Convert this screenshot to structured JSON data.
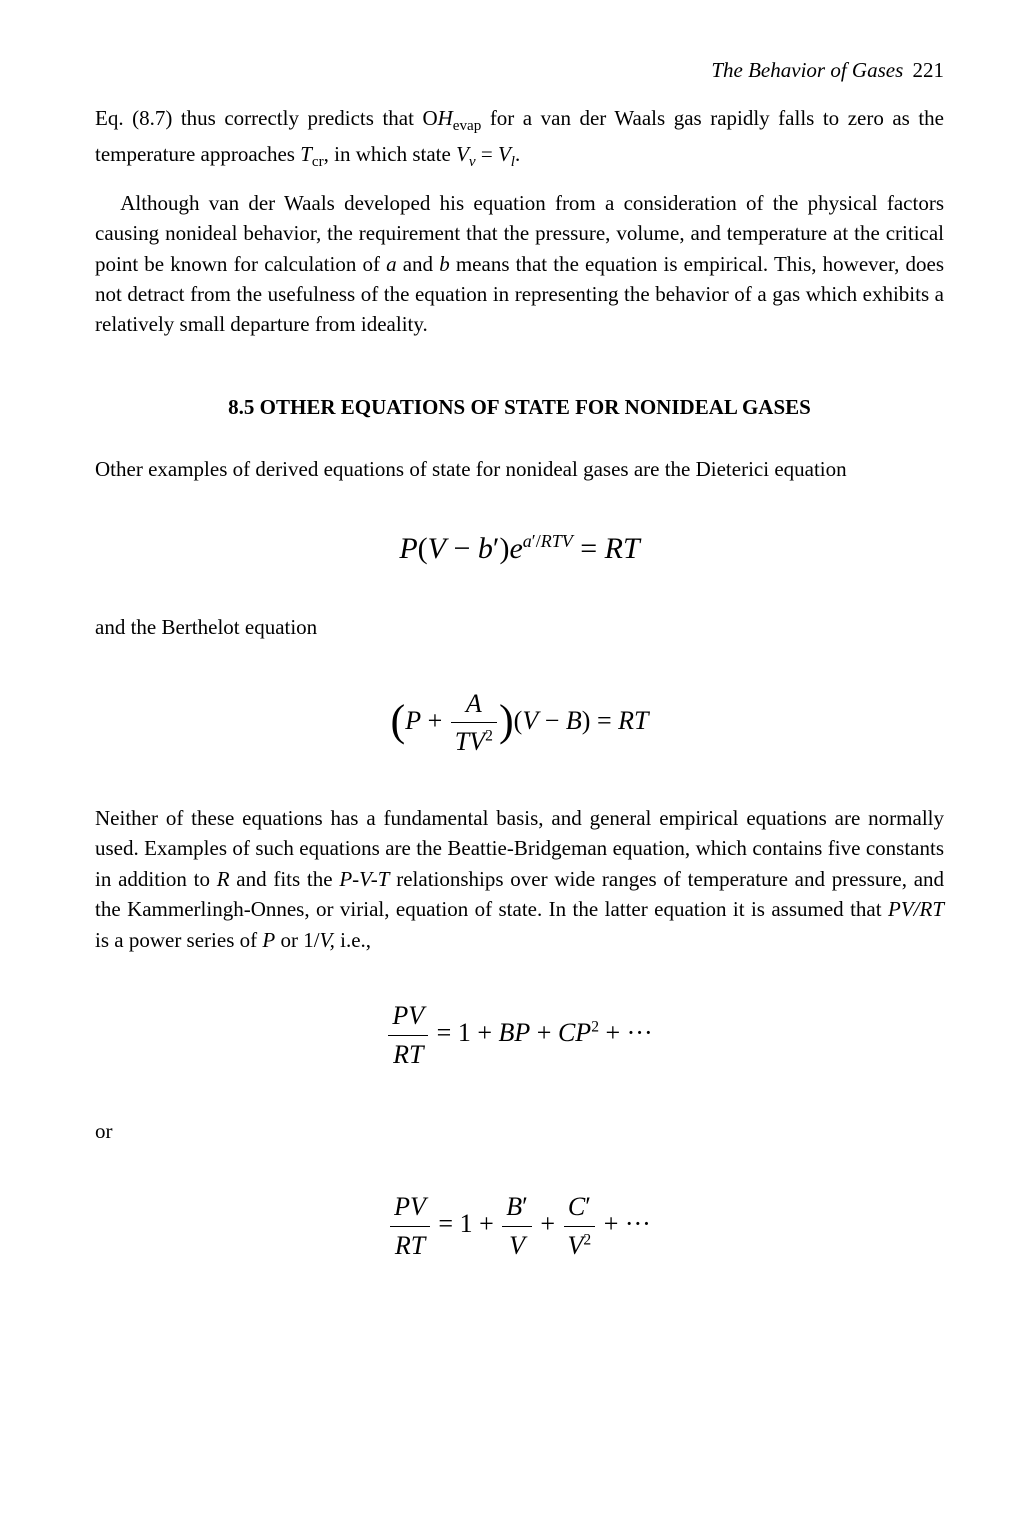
{
  "header": {
    "running_title": "The Behavior of Gases",
    "page_number": "221"
  },
  "para1a": "Eq. (8.7) thus correctly predicts that O",
  "para1_Hevap_H": "H",
  "para1_Hevap_sub": "evap",
  "para1b": " for a van der Waals gas rapidly falls to zero as the temperature approaches ",
  "para1_Tcr_T": "T",
  "para1_Tcr_sub": "cr",
  "para1c": ", in which state ",
  "para1_Vv_V": "V",
  "para1_Vv_sub": "v",
  "para1_eqsign": " = ",
  "para1_Vl_V": "V",
  "para1_Vl_sub": "l",
  "para1d": ".",
  "para2a": "Although van der Waals developed his equation from a consideration of the physical factors causing nonideal behavior, the requirement that the pressure, volume, and temperature at the critical point be known for calculation of ",
  "para2_a": "a",
  "para2b": " and ",
  "para2_bvar": "b",
  "para2c": " means that the equation is empirical. This, however, does not detract from the usefulness of the equation in representing the behavior of a gas which exhibits a relatively small departure from ideality.",
  "section_title": "8.5 OTHER EQUATIONS OF STATE FOR NONIDEAL GASES",
  "para3": "Other examples of derived equations of state for nonideal gases are the Dieterici equation",
  "eq1": {
    "lhs_P": "P",
    "lhs_open": "(",
    "lhs_V": "V",
    "lhs_minus": " − ",
    "lhs_b": "b",
    "lhs_prime": "′",
    "lhs_close": ")",
    "e": "e",
    "sup_a": "a",
    "sup_prime": "′",
    "sup_slash": "/",
    "sup_R": "R",
    "sup_T": "T",
    "sup_V": "V",
    "equals": " = ",
    "rhs_R": "R",
    "rhs_T": "T"
  },
  "para4": "and the Berthelot equation",
  "eq2": {
    "P": "P",
    "plus": " + ",
    "frac_num_A": "A",
    "frac_den_T": "T",
    "frac_den_V": "V",
    "frac_den_exp": "2",
    "open2": "(",
    "V": "V",
    "minus": " − ",
    "B": "B",
    "close2": ")",
    "equals": " = ",
    "R": "R",
    "T": "T"
  },
  "para5a": "Neither of these equations has a fundamental basis, and general empirical equations are normally used. Examples of such equations are the Beattie-Bridgeman equation, which contains five constants in addition to ",
  "para5_R": "R",
  "para5b": " and fits the ",
  "para5_PVT": "P-V-T",
  "para5c": " relationships over wide ranges of temperature and pressure, and the Kammerlingh-Onnes, or virial, equation of state. In the latter equation it is assumed that ",
  "para5_PVRT": "PV/RT",
  "para5d": " is a power series of ",
  "para5_P": "P",
  "para5e": " or 1/",
  "para5_V": "V,",
  "para5f": " i.e.,",
  "eq3": {
    "num_P": "P",
    "num_V": "V",
    "den_R": "R",
    "den_T": "T",
    "equals": " = ",
    "one": "1",
    "plus1": " + ",
    "B": "B",
    "P1": "P",
    "plus2": " + ",
    "C": "C",
    "P2": "P",
    "exp2": "2",
    "dots": " + ···"
  },
  "or_label": " or",
  "eq4": {
    "num_P": "P",
    "num_V": "V",
    "den_R": "R",
    "den_T": "T",
    "equals": " = ",
    "one": "1",
    "plus1": " + ",
    "B": "B",
    "Bprime": "′",
    "Vden1": "V",
    "plus2": " + ",
    "C": "C",
    "Cprime": "′",
    "Vden2": "V",
    "Vexp2": "2",
    "dots": " + ···"
  }
}
